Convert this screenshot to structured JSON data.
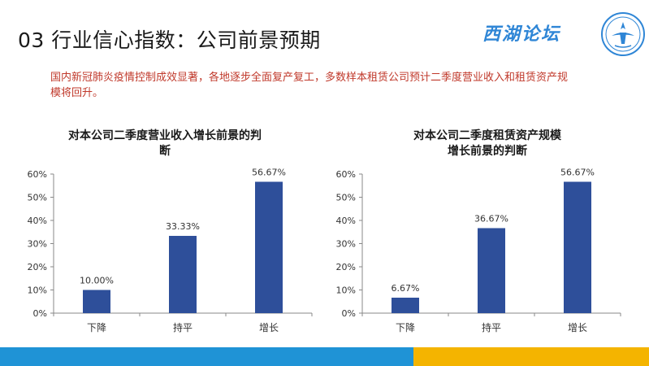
{
  "slide": {
    "title": "03 行业信心指数：公司前景预期",
    "intro": "国内新冠肺炎疫情控制成效显著，各地逐步全面复产复工，多数样本租赁公司预计二季度营业收入和租赁资产规模将回升。"
  },
  "logo": {
    "text": "西湖论坛",
    "icon": "round-seal-emblem-icon",
    "color": "#2f86d6"
  },
  "colors": {
    "bar": "#2e4f9a",
    "footer_left": "#1f93d6",
    "footer_right": "#f4b400",
    "intro_text": "#c0392b"
  },
  "chart_data": [
    {
      "type": "bar",
      "title": "对本公司二季度营业收入增长前景的判断",
      "title_lines": [
        "对本公司二季度营业收入增长前景的判",
        "断"
      ],
      "categories": [
        "下降",
        "持平",
        "增长"
      ],
      "values": [
        10.0,
        33.33,
        56.67
      ],
      "value_labels": [
        "10.00%",
        "33.33%",
        "56.67%"
      ],
      "ylim": [
        0,
        60
      ],
      "yticks": [
        0,
        10,
        20,
        30,
        40,
        50,
        60
      ],
      "ytick_labels": [
        "0%",
        "10%",
        "20%",
        "30%",
        "40%",
        "50%",
        "60%"
      ],
      "grid": false,
      "legend": "none"
    },
    {
      "type": "bar",
      "title": "对本公司二季度租赁资产规模增长前景的判断",
      "title_lines": [
        "对本公司二季度租赁资产规模",
        "增长前景的判断"
      ],
      "categories": [
        "下降",
        "持平",
        "增长"
      ],
      "values": [
        6.67,
        36.67,
        56.67
      ],
      "value_labels": [
        "6.67%",
        "36.67%",
        "56.67%"
      ],
      "ylim": [
        0,
        60
      ],
      "yticks": [
        0,
        10,
        20,
        30,
        40,
        50,
        60
      ],
      "ytick_labels": [
        "0%",
        "10%",
        "20%",
        "30%",
        "40%",
        "50%",
        "60%"
      ],
      "grid": false,
      "legend": "none"
    }
  ]
}
